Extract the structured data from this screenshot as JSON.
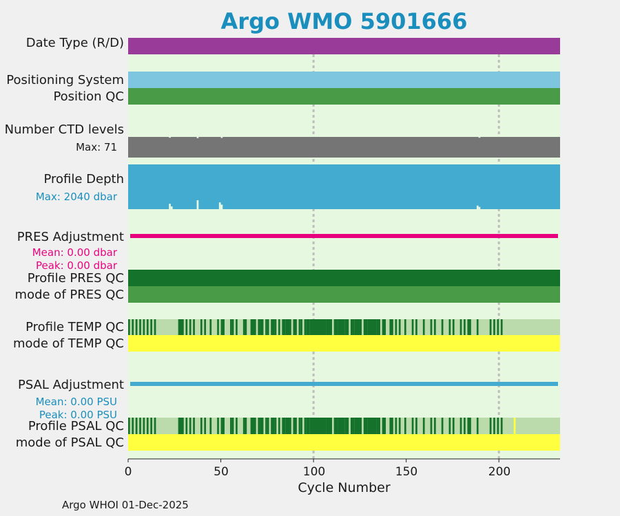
{
  "title": "Argo WMO 5901666",
  "footer": "Argo WHOI 01-Dec-2025",
  "colors": {
    "plot_bg": "#e6f9e0",
    "date_type": "#993b98",
    "positioning": "#7ec6df",
    "position_qc": "#4a9b48",
    "ctd_levels": "#757575",
    "profile_depth": "#43abd0",
    "pres_adj": "#e8037f",
    "pres_qc_profile": "#14722a",
    "pres_qc_mode": "#4a9b48",
    "qc_good": "#14722a",
    "qc_light": "#bcdbac",
    "qc_mode_yellow": "#ffff40",
    "psal_adj": "#43abd0",
    "mean_text_pres": "#e8037f",
    "mean_text_psal": "#1a8fbd"
  },
  "chart_data": {
    "type": "bar",
    "title": "Argo WMO 5901666",
    "xlabel": "Cycle Number",
    "xlim": [
      0,
      233
    ],
    "xticks": [
      0,
      50,
      100,
      150,
      200
    ],
    "gridlines_x": [
      100,
      200
    ],
    "rows": [
      {
        "label": "Date Type (R/D)",
        "kind": "full",
        "value": "R"
      },
      {
        "label": "Positioning System",
        "kind": "full"
      },
      {
        "label": "Position QC",
        "kind": "full"
      },
      {
        "label": "Number CTD levels",
        "kind": "levels",
        "max_label": "Max: 71",
        "max": 71
      },
      {
        "label": "Profile Depth",
        "kind": "depth",
        "max_label": "Max: 2040 dbar",
        "max": 2040
      },
      {
        "label": "PRES Adjustment",
        "kind": "adjustment",
        "mean_label": "Mean: 0.00 dbar",
        "peak_label": "Peak: 0.00 dbar"
      },
      {
        "label": "Profile PRES QC",
        "kind": "full"
      },
      {
        "label": "mode of PRES QC",
        "kind": "full"
      },
      {
        "label": "Profile TEMP QC",
        "kind": "qc_profile"
      },
      {
        "label": "mode of TEMP QC",
        "kind": "full"
      },
      {
        "label": "PSAL Adjustment",
        "kind": "adjustment",
        "mean_label": "Mean: 0.00 PSU",
        "peak_label": "Peak: 0.00 PSU"
      },
      {
        "label": "Profile PSAL QC",
        "kind": "qc_profile"
      },
      {
        "label": "mode of PSAL QC",
        "kind": "full"
      }
    ],
    "temp_qc_good_ranges": [
      [
        0,
        1
      ],
      [
        2,
        3
      ],
      [
        4,
        5
      ],
      [
        6,
        7
      ],
      [
        8,
        9
      ],
      [
        10,
        11
      ],
      [
        12,
        13
      ],
      [
        14,
        15
      ],
      [
        27,
        30
      ],
      [
        31,
        32
      ],
      [
        33,
        34
      ],
      [
        35,
        36
      ],
      [
        39,
        40
      ],
      [
        41,
        42
      ],
      [
        44,
        45
      ],
      [
        48,
        49
      ],
      [
        50,
        52
      ],
      [
        55,
        56
      ],
      [
        56,
        57
      ],
      [
        58,
        59
      ],
      [
        62,
        63
      ],
      [
        63,
        64
      ],
      [
        66,
        69
      ],
      [
        70,
        71
      ],
      [
        71,
        73
      ],
      [
        74,
        75
      ],
      [
        75,
        76
      ],
      [
        77,
        79
      ],
      [
        79,
        80
      ],
      [
        81,
        82
      ],
      [
        83,
        85
      ],
      [
        85,
        88
      ],
      [
        89,
        91
      ],
      [
        92,
        93
      ],
      [
        93,
        94
      ],
      [
        95,
        96
      ],
      [
        96,
        98
      ],
      [
        98,
        107
      ],
      [
        107,
        110
      ],
      [
        111,
        113
      ],
      [
        113,
        117
      ],
      [
        117,
        119
      ],
      [
        120,
        122
      ],
      [
        122,
        126
      ],
      [
        127,
        129
      ],
      [
        129,
        134
      ],
      [
        134,
        136
      ],
      [
        137,
        139
      ],
      [
        141,
        143
      ],
      [
        144,
        145
      ],
      [
        146,
        147
      ],
      [
        149,
        150
      ],
      [
        153,
        154
      ],
      [
        155,
        156
      ],
      [
        159,
        160
      ],
      [
        163,
        164
      ],
      [
        165,
        166
      ],
      [
        169,
        170
      ],
      [
        173,
        174
      ],
      [
        175,
        176
      ],
      [
        179,
        180
      ],
      [
        181,
        182
      ],
      [
        183,
        185
      ],
      [
        188,
        189
      ],
      [
        195,
        196
      ],
      [
        197,
        198
      ],
      [
        199,
        200
      ],
      [
        201,
        202
      ]
    ],
    "psal_qc_good_ranges": [
      [
        0,
        1
      ],
      [
        2,
        3
      ],
      [
        4,
        5
      ],
      [
        6,
        7
      ],
      [
        8,
        9
      ],
      [
        10,
        11
      ],
      [
        12,
        13
      ],
      [
        14,
        15
      ],
      [
        27,
        30
      ],
      [
        31,
        32
      ],
      [
        33,
        34
      ],
      [
        35,
        36
      ],
      [
        39,
        40
      ],
      [
        41,
        42
      ],
      [
        44,
        45
      ],
      [
        48,
        49
      ],
      [
        50,
        52
      ],
      [
        55,
        56
      ],
      [
        56,
        57
      ],
      [
        58,
        59
      ],
      [
        62,
        63
      ],
      [
        63,
        64
      ],
      [
        66,
        69
      ],
      [
        70,
        71
      ],
      [
        71,
        73
      ],
      [
        74,
        75
      ],
      [
        75,
        76
      ],
      [
        77,
        79
      ],
      [
        79,
        80
      ],
      [
        81,
        82
      ],
      [
        83,
        85
      ],
      [
        85,
        88
      ],
      [
        89,
        91
      ],
      [
        92,
        93
      ],
      [
        93,
        94
      ],
      [
        95,
        96
      ],
      [
        96,
        98
      ],
      [
        98,
        107
      ],
      [
        107,
        110
      ],
      [
        111,
        113
      ],
      [
        113,
        117
      ],
      [
        117,
        119
      ],
      [
        120,
        122
      ],
      [
        122,
        126
      ],
      [
        127,
        129
      ],
      [
        129,
        134
      ],
      [
        134,
        136
      ],
      [
        137,
        139
      ],
      [
        141,
        143
      ],
      [
        144,
        145
      ],
      [
        146,
        147
      ],
      [
        149,
        150
      ],
      [
        153,
        154
      ],
      [
        155,
        156
      ],
      [
        159,
        160
      ],
      [
        163,
        164
      ],
      [
        165,
        166
      ],
      [
        169,
        170
      ],
      [
        173,
        174
      ],
      [
        175,
        176
      ],
      [
        179,
        180
      ],
      [
        181,
        182
      ],
      [
        183,
        185
      ],
      [
        188,
        189
      ],
      [
        195,
        196
      ],
      [
        197,
        198
      ],
      [
        199,
        200
      ],
      [
        201,
        202
      ]
    ],
    "psal_qc_yellow_ranges": [
      [
        208,
        209
      ]
    ],
    "depth_dips": [
      [
        22,
        0.12
      ],
      [
        23,
        0.06
      ],
      [
        37,
        0.2
      ],
      [
        49,
        0.15
      ],
      [
        50,
        0.1
      ],
      [
        188,
        0.08
      ],
      [
        189,
        0.05
      ]
    ],
    "level_dips": [
      [
        22,
        0.4
      ],
      [
        37,
        0.6
      ],
      [
        50,
        0.5
      ],
      [
        189,
        0.4
      ]
    ]
  }
}
